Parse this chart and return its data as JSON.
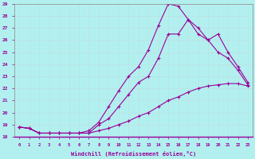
{
  "xlabel": "Windchill (Refroidissement éolien,°C)",
  "bg_color": "#b2f0f0",
  "grid_color": "#d0e8e8",
  "line_color": "#990099",
  "xlim": [
    -0.5,
    23.5
  ],
  "ylim": [
    18,
    29
  ],
  "xticks": [
    0,
    1,
    2,
    3,
    4,
    5,
    6,
    7,
    8,
    9,
    10,
    11,
    12,
    13,
    14,
    15,
    16,
    17,
    18,
    19,
    20,
    21,
    22,
    23
  ],
  "yticks": [
    18,
    19,
    20,
    21,
    22,
    23,
    24,
    25,
    26,
    27,
    28,
    29
  ],
  "line1_x": [
    0,
    1,
    2,
    3,
    4,
    5,
    6,
    7,
    8,
    9,
    10,
    11,
    12,
    13,
    14,
    15,
    16,
    17,
    18,
    19,
    20,
    21,
    22,
    23
  ],
  "line1_y": [
    18.8,
    18.7,
    18.3,
    18.3,
    18.3,
    18.3,
    18.3,
    18.3,
    18.5,
    18.7,
    19.0,
    19.3,
    19.7,
    20.0,
    20.5,
    21.0,
    21.3,
    21.7,
    22.0,
    22.2,
    22.3,
    22.4,
    22.4,
    22.2
  ],
  "line2_x": [
    0,
    1,
    2,
    3,
    4,
    5,
    6,
    7,
    8,
    9,
    10,
    11,
    12,
    13,
    14,
    15,
    16,
    17,
    18,
    19,
    20,
    21,
    22,
    23
  ],
  "line2_y": [
    18.8,
    18.7,
    18.3,
    18.3,
    18.3,
    18.3,
    18.3,
    18.3,
    19.0,
    19.5,
    20.5,
    21.5,
    22.5,
    23.0,
    24.5,
    26.5,
    26.5,
    27.7,
    26.5,
    26.0,
    25.0,
    24.5,
    23.5,
    22.3
  ],
  "line3_x": [
    0,
    1,
    2,
    3,
    4,
    5,
    6,
    7,
    8,
    9,
    10,
    11,
    12,
    13,
    14,
    15,
    16,
    17,
    18,
    19,
    20,
    21,
    22,
    23
  ],
  "line3_y": [
    18.8,
    18.7,
    18.3,
    18.3,
    18.3,
    18.3,
    18.3,
    18.5,
    19.2,
    20.5,
    21.8,
    23.0,
    23.8,
    25.2,
    27.2,
    29.0,
    28.8,
    27.7,
    27.0,
    26.0,
    26.5,
    25.0,
    23.8,
    22.5
  ]
}
